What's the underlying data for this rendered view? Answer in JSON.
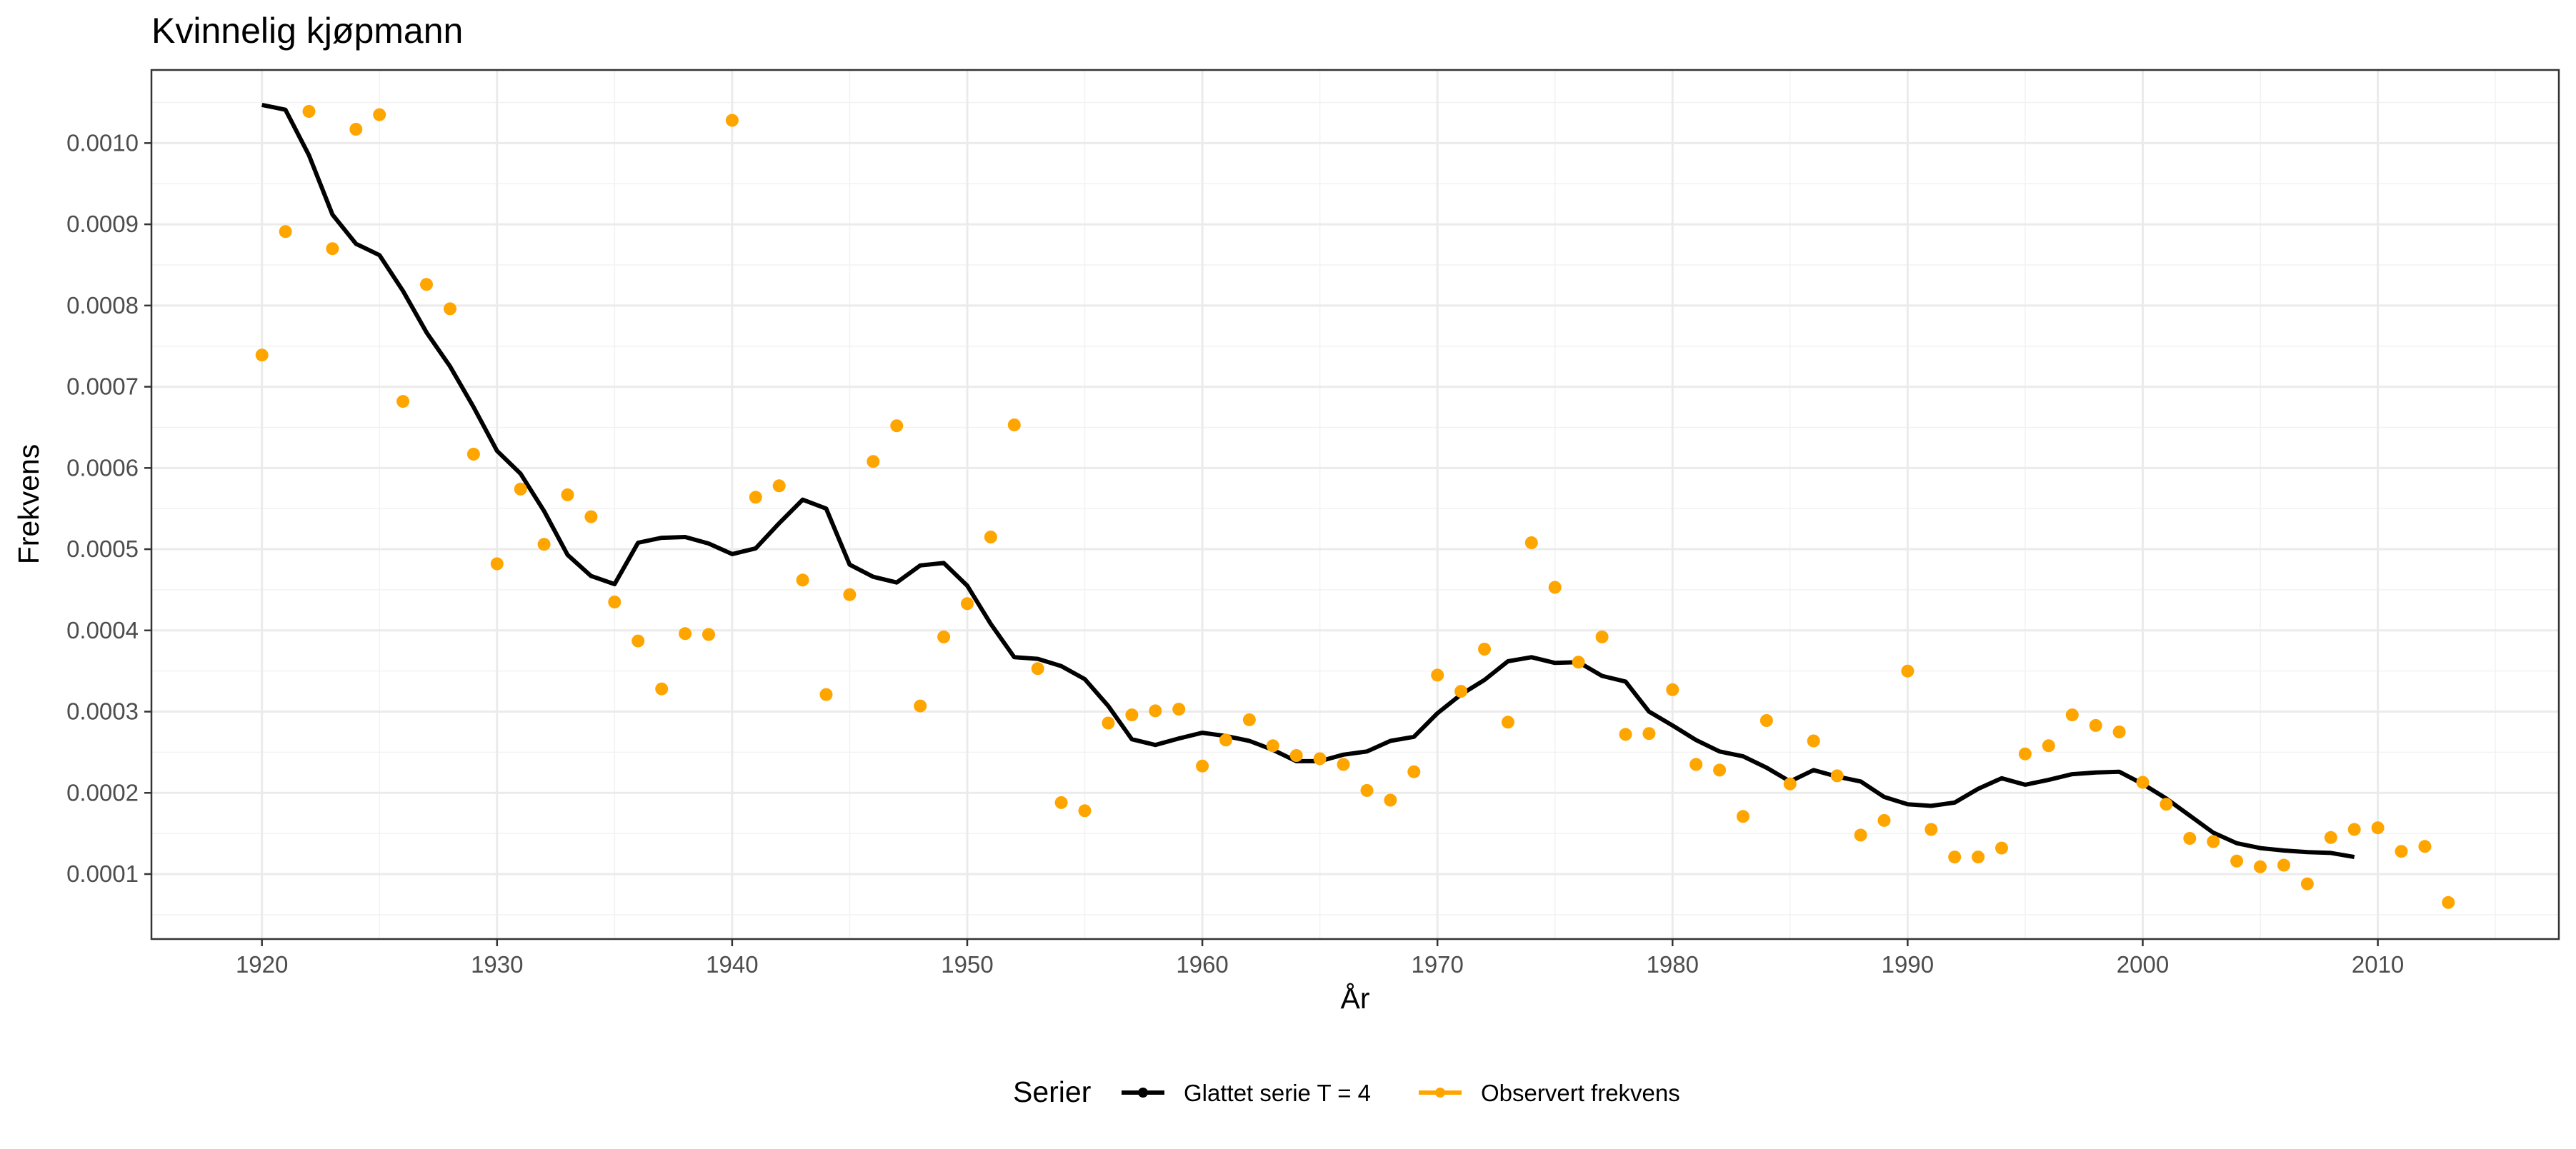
{
  "chart_data": {
    "type": "line",
    "title": "Kvinnelig kjøpmann",
    "xlabel": "År",
    "ylabel": "Frekvens",
    "xlim": [
      1915.3,
      2017.7
    ],
    "ylim": [
      2e-05,
      0.00109
    ],
    "x_ticks": [
      1920,
      1930,
      1940,
      1950,
      1960,
      1970,
      1980,
      1990,
      2000,
      2010
    ],
    "y_ticks": [
      0.0001,
      0.0002,
      0.0003,
      0.0004,
      0.0005,
      0.0006,
      0.0007,
      0.0008,
      0.0009,
      0.001
    ],
    "y_tick_labels": [
      "0.0001",
      "0.0002",
      "0.0003",
      "0.0004",
      "0.0005",
      "0.0006",
      "0.0007",
      "0.0008",
      "0.0009",
      "0.0010"
    ],
    "grid": true,
    "legend": {
      "position": "bottom",
      "title": "Serier",
      "entries": [
        "Glattet serie T  = 4",
        "Observert frekvens"
      ]
    },
    "series": [
      {
        "name": "Glattet serie T  = 4",
        "style": "line",
        "color": "#000000",
        "x": [
          1920,
          1921,
          1922,
          1923,
          1924,
          1925,
          1926,
          1927,
          1928,
          1929,
          1930,
          1931,
          1932,
          1933,
          1934,
          1935,
          1936,
          1937,
          1938,
          1939,
          1940,
          1941,
          1942,
          1943,
          1944,
          1945,
          1946,
          1947,
          1948,
          1949,
          1950,
          1951,
          1952,
          1953,
          1954,
          1955,
          1956,
          1957,
          1958,
          1959,
          1960,
          1961,
          1962,
          1963,
          1964,
          1965,
          1966,
          1967,
          1968,
          1969,
          1970,
          1971,
          1972,
          1973,
          1974,
          1975,
          1976,
          1977,
          1978,
          1979,
          1980,
          1981,
          1982,
          1983,
          1984,
          1985,
          1986,
          1987,
          1988,
          1989,
          1990,
          1991,
          1992,
          1993,
          1994,
          1995,
          1996,
          1997,
          1998,
          1999,
          2000,
          2001,
          2002,
          2003,
          2004,
          2005,
          2006,
          2007,
          2008,
          2009
        ],
        "y": [
          0.001047,
          0.001041,
          0.000985,
          0.000912,
          0.000876,
          0.000862,
          0.000818,
          0.000767,
          0.000725,
          0.000675,
          0.000621,
          0.000593,
          0.000547,
          0.000493,
          0.000467,
          0.000457,
          0.000508,
          0.000514,
          0.000515,
          0.000507,
          0.000494,
          0.000501,
          0.000532,
          0.000561,
          0.00055,
          0.000481,
          0.000466,
          0.000459,
          0.00048,
          0.000483,
          0.000455,
          0.000408,
          0.000367,
          0.000365,
          0.000356,
          0.00034,
          0.000307,
          0.000266,
          0.000259,
          0.000267,
          0.000274,
          0.00027,
          0.000264,
          0.000253,
          0.000239,
          0.000239,
          0.000247,
          0.000251,
          0.000264,
          0.000269,
          0.000298,
          0.000321,
          0.000339,
          0.000362,
          0.000367,
          0.00036,
          0.000361,
          0.000344,
          0.000337,
          0.0003,
          0.000283,
          0.000265,
          0.000251,
          0.000245,
          0.000231,
          0.000214,
          0.000228,
          0.00022,
          0.000214,
          0.000195,
          0.000186,
          0.000184,
          0.000188,
          0.000205,
          0.000218,
          0.00021,
          0.000216,
          0.000223,
          0.000225,
          0.000226,
          0.000211,
          0.000193,
          0.000172,
          0.000151,
          0.000138,
          0.000132,
          0.000129,
          0.000127,
          0.000126,
          0.000121
        ]
      },
      {
        "name": "Observert frekvens",
        "style": "points",
        "color": "#FFA500",
        "x": [
          1920,
          1921,
          1922,
          1923,
          1924,
          1925,
          1926,
          1927,
          1928,
          1929,
          1930,
          1931,
          1932,
          1933,
          1934,
          1935,
          1936,
          1937,
          1938,
          1939,
          1940,
          1941,
          1942,
          1943,
          1944,
          1945,
          1946,
          1947,
          1948,
          1949,
          1950,
          1951,
          1952,
          1953,
          1954,
          1955,
          1956,
          1957,
          1958,
          1959,
          1960,
          1961,
          1962,
          1963,
          1964,
          1965,
          1966,
          1967,
          1968,
          1969,
          1970,
          1971,
          1972,
          1973,
          1974,
          1975,
          1976,
          1977,
          1978,
          1979,
          1980,
          1981,
          1982,
          1983,
          1984,
          1985,
          1986,
          1987,
          1988,
          1989,
          1990,
          1991,
          1992,
          1993,
          1994,
          1995,
          1996,
          1997,
          1998,
          1999,
          2000,
          2001,
          2002,
          2003,
          2004,
          2005,
          2006,
          2007,
          2008,
          2009,
          2010,
          2011,
          2012,
          2013
        ],
        "y": [
          0.000739,
          0.000891,
          0.001039,
          0.00087,
          0.001017,
          0.001035,
          0.000682,
          0.000826,
          0.000796,
          0.000617,
          0.000482,
          0.000574,
          0.000506,
          0.000567,
          0.00054,
          0.000435,
          0.000387,
          0.000328,
          0.000396,
          0.000395,
          0.001028,
          0.000564,
          0.000578,
          0.000462,
          0.000321,
          0.000444,
          0.000608,
          0.000652,
          0.000307,
          0.000392,
          0.000433,
          0.000515,
          0.000653,
          0.000353,
          0.000188,
          0.000178,
          0.000286,
          0.000296,
          0.000301,
          0.000303,
          0.000233,
          0.000265,
          0.00029,
          0.000258,
          0.000246,
          0.000242,
          0.000235,
          0.000203,
          0.000191,
          0.000226,
          0.000345,
          0.000325,
          0.000377,
          0.000287,
          0.000508,
          0.000453,
          0.000361,
          0.000392,
          0.000272,
          0.000273,
          0.000327,
          0.000235,
          0.000228,
          0.000171,
          0.000289,
          0.000211,
          0.000264,
          0.000221,
          0.000148,
          0.000166,
          0.00035,
          0.000155,
          0.000121,
          0.000121,
          0.000132,
          0.000248,
          0.000258,
          0.000296,
          0.000283,
          0.000275,
          0.000213,
          0.000186,
          0.000144,
          0.00014,
          0.000116,
          0.000109,
          0.000111,
          8.8e-05,
          0.000145,
          0.000155,
          0.000157,
          0.000128,
          0.000134,
          6.5e-05
        ]
      }
    ]
  }
}
